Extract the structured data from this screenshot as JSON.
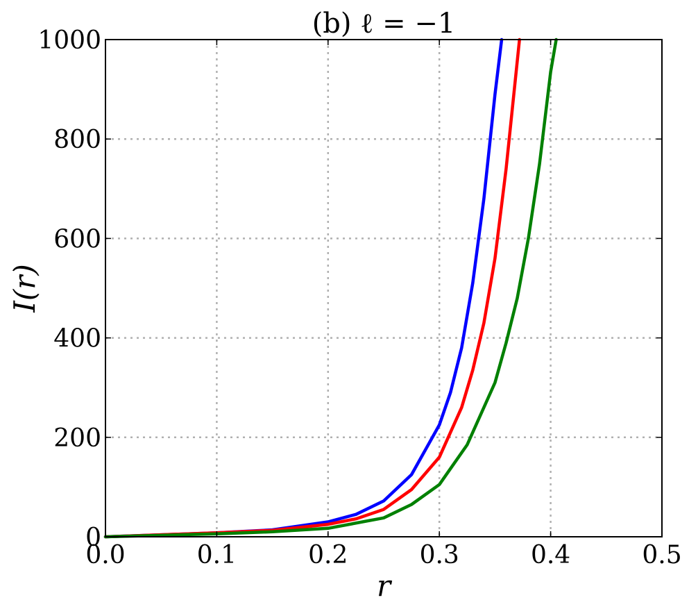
{
  "chart_data": {
    "type": "line",
    "title": "(b) ℓ = −1",
    "xlabel": "r",
    "ylabel": "I(r)",
    "xlim": [
      0.0,
      0.5
    ],
    "ylim": [
      0,
      1000
    ],
    "xticks": [
      0.0,
      0.1,
      0.2,
      0.3,
      0.4,
      0.5
    ],
    "xtick_labels": [
      "0.0",
      "0.1",
      "0.2",
      "0.3",
      "0.4",
      "0.5"
    ],
    "yticks": [
      0,
      200,
      400,
      600,
      800,
      1000
    ],
    "ytick_labels": [
      "0",
      "200",
      "400",
      "600",
      "800",
      "1000"
    ],
    "grid": true,
    "series": [
      {
        "color": "#0000ff",
        "x": [
          0.0,
          0.05,
          0.1,
          0.15,
          0.2,
          0.225,
          0.25,
          0.275,
          0.3,
          0.31,
          0.32,
          0.33,
          0.34,
          0.35,
          0.356
        ],
        "y": [
          0,
          4,
          8,
          14,
          30,
          45,
          72,
          125,
          225,
          290,
          380,
          510,
          680,
          890,
          1000
        ]
      },
      {
        "color": "#ff0000",
        "x": [
          0.0,
          0.05,
          0.1,
          0.15,
          0.2,
          0.225,
          0.25,
          0.275,
          0.3,
          0.32,
          0.33,
          0.34,
          0.35,
          0.36,
          0.372
        ],
        "y": [
          0,
          4,
          8,
          13,
          25,
          36,
          55,
          95,
          160,
          260,
          335,
          430,
          560,
          740,
          1000
        ]
      },
      {
        "color": "#008000",
        "x": [
          0.0,
          0.05,
          0.1,
          0.15,
          0.2,
          0.25,
          0.275,
          0.3,
          0.325,
          0.35,
          0.36,
          0.37,
          0.38,
          0.39,
          0.4,
          0.405
        ],
        "y": [
          0,
          3,
          6,
          10,
          17,
          38,
          65,
          105,
          185,
          310,
          390,
          480,
          600,
          750,
          935,
          1000
        ]
      }
    ]
  }
}
